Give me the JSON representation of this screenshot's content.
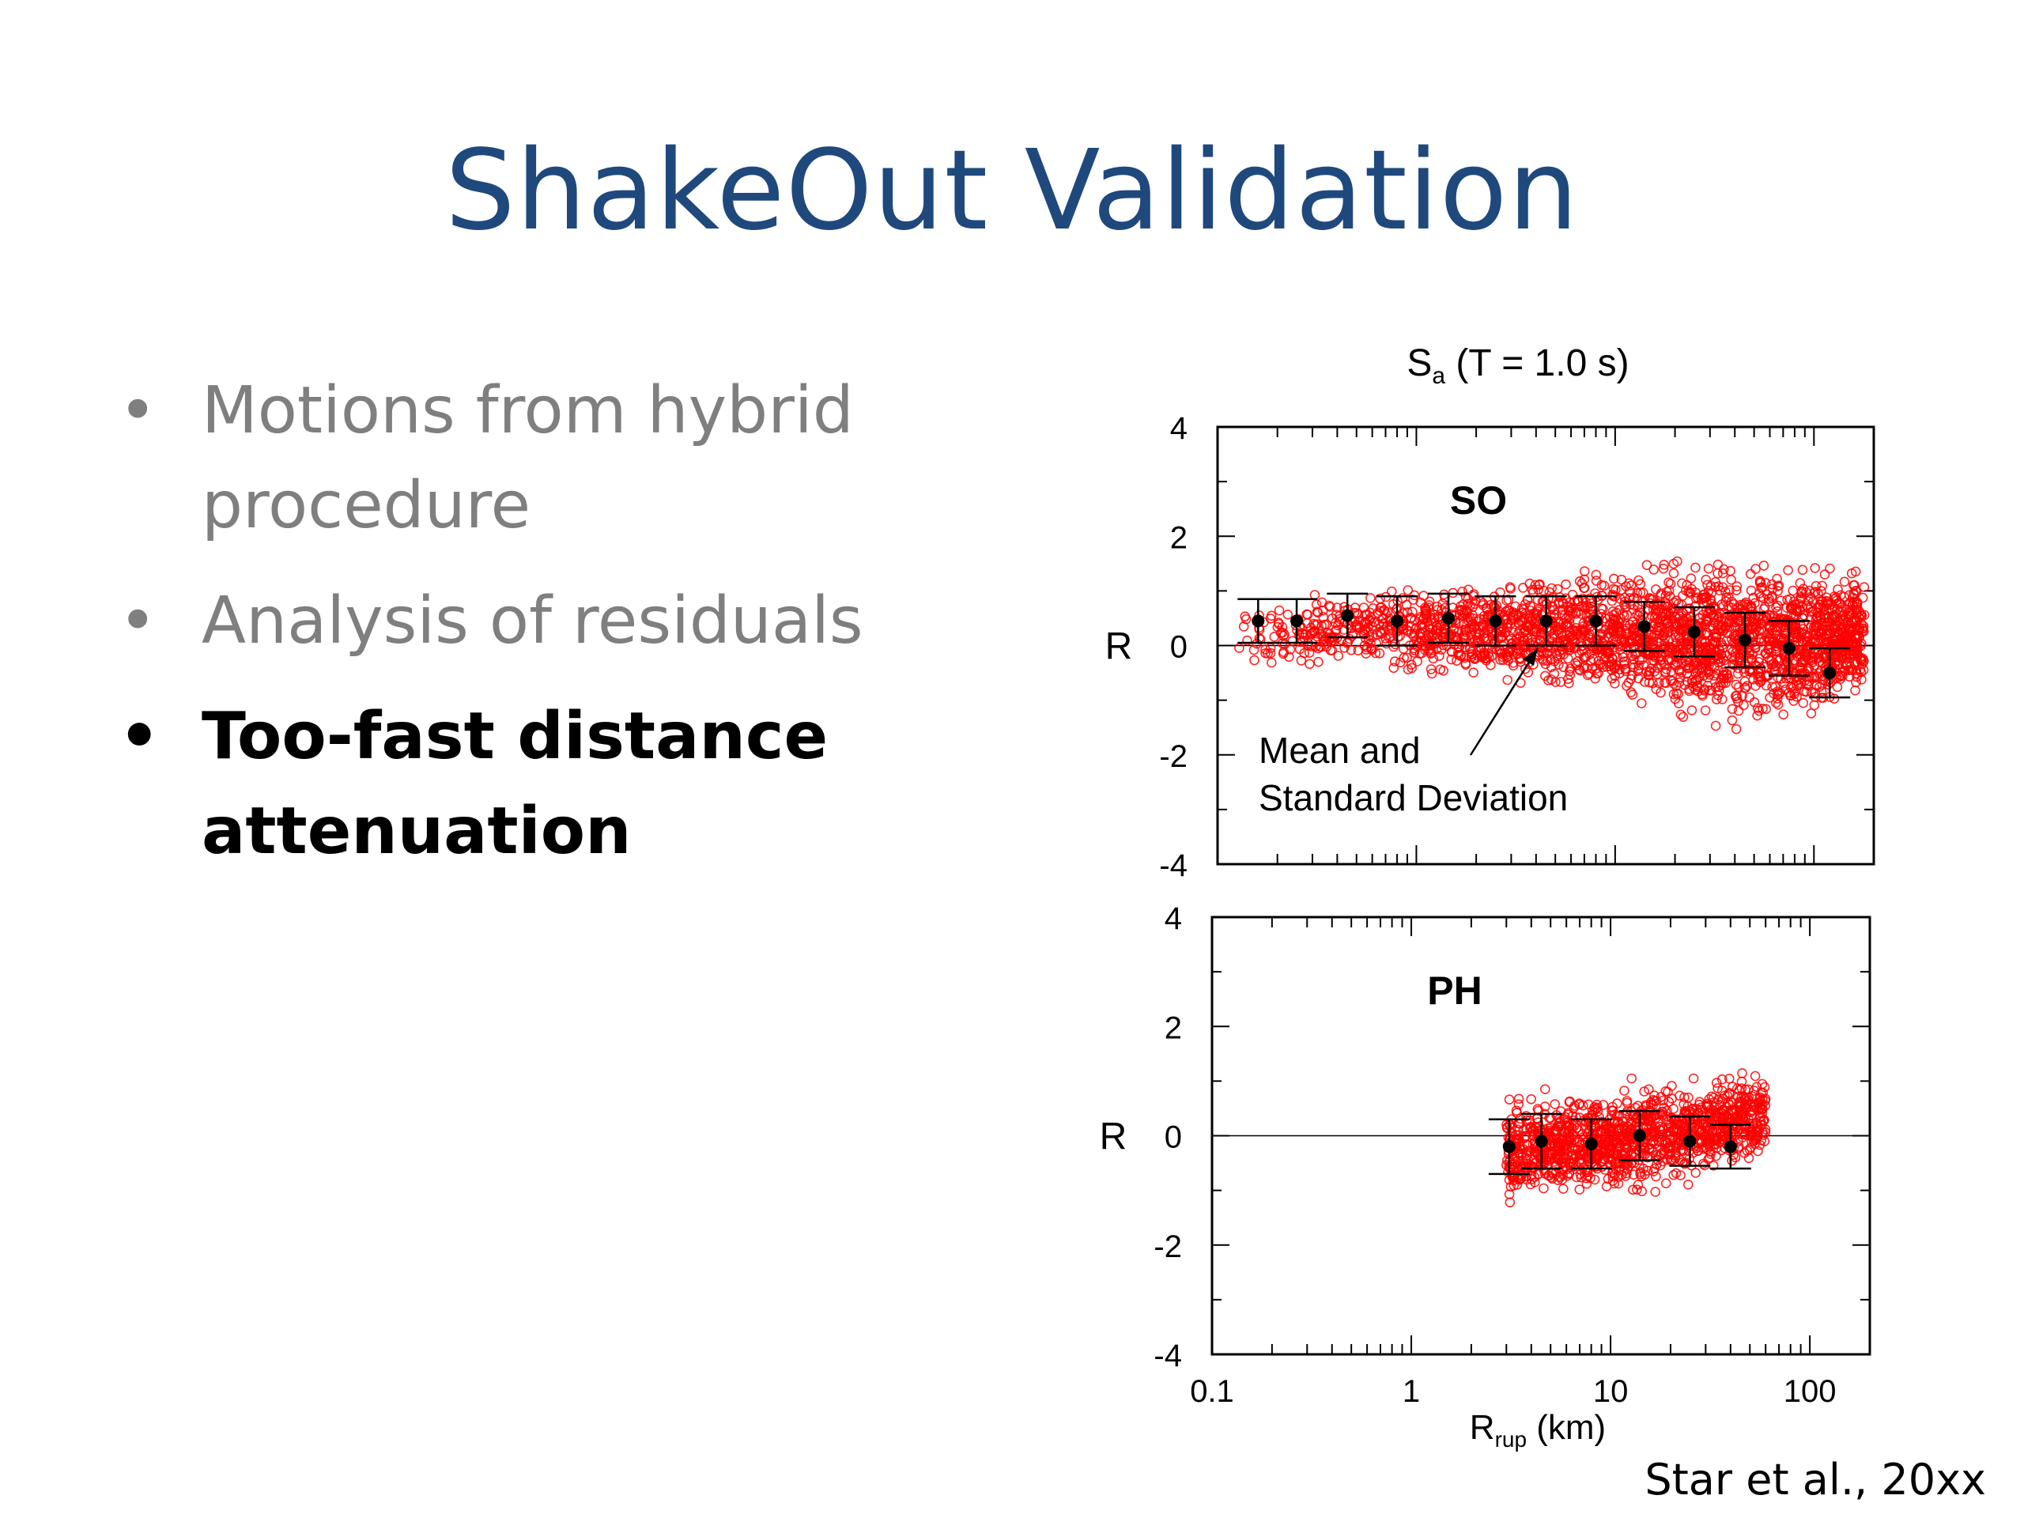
{
  "slide": {
    "title": "ShakeOut Validation",
    "citation": "Star et al., 20xx"
  },
  "bullets": [
    {
      "text": "Motions from hybrid procedure",
      "bold": false
    },
    {
      "text": "Analysis of residuals",
      "bold": false
    },
    {
      "text": "Too-fast distance attenuation",
      "bold": true
    }
  ],
  "colors": {
    "title": "#1f497d",
    "bullet_gray": "#7f7f7f",
    "residual_red": "#ff0000",
    "mean_marker": "#000000"
  },
  "chart_data": {
    "type": "scatter",
    "title_main": "S",
    "title_sub": "a",
    "title_rest": " (T = 1.0 s)",
    "xlabel_main": "R",
    "xlabel_sub": "rup",
    "xlabel_rest": " (km)",
    "ylabel": "R",
    "x_scale": "log",
    "xlim": [
      0.1,
      200
    ],
    "ylim": [
      -4,
      4
    ],
    "x_ticks": [
      0.1,
      1,
      10,
      100
    ],
    "x_tick_labels": [
      "0.1",
      "1",
      "10",
      "100"
    ],
    "y_ticks": [
      4,
      2,
      0,
      -2,
      -4
    ],
    "y_tick_labels": [
      "4",
      "2",
      "0",
      "-2",
      "-4"
    ],
    "annotation": [
      "Mean and",
      "Standard Deviation"
    ],
    "panels": [
      {
        "label": "SO",
        "scatter_envelope": {
          "x_range": [
            0.12,
            180
          ],
          "upper": [
            0.9,
            1.2,
            1.3,
            1.6,
            1.9,
            1.6
          ],
          "lower": [
            -0.6,
            -0.6,
            -0.8,
            -1.2,
            -1.8,
            -1.2
          ]
        },
        "mean_std": [
          {
            "x": 0.16,
            "mean": 0.45,
            "std": 0.4
          },
          {
            "x": 0.25,
            "mean": 0.45,
            "std": 0.4
          },
          {
            "x": 0.45,
            "mean": 0.55,
            "std": 0.4
          },
          {
            "x": 0.8,
            "mean": 0.45,
            "std": 0.45
          },
          {
            "x": 1.45,
            "mean": 0.5,
            "std": 0.45
          },
          {
            "x": 2.5,
            "mean": 0.45,
            "std": 0.45
          },
          {
            "x": 4.5,
            "mean": 0.45,
            "std": 0.45
          },
          {
            "x": 8,
            "mean": 0.45,
            "std": 0.45
          },
          {
            "x": 14,
            "mean": 0.35,
            "std": 0.45
          },
          {
            "x": 25,
            "mean": 0.25,
            "std": 0.45
          },
          {
            "x": 45,
            "mean": 0.1,
            "std": 0.5
          },
          {
            "x": 75,
            "mean": -0.05,
            "std": 0.5
          },
          {
            "x": 120,
            "mean": -0.5,
            "std": 0.45
          }
        ]
      },
      {
        "label": "PH",
        "scatter_envelope": {
          "x_range": [
            3,
            60
          ],
          "upper": [
            0.8,
            1.1,
            1.3
          ],
          "lower": [
            -1.4,
            -1.2,
            -0.6
          ]
        },
        "mean_std": [
          {
            "x": 3.1,
            "mean": -0.2,
            "std": 0.5
          },
          {
            "x": 4.5,
            "mean": -0.1,
            "std": 0.5
          },
          {
            "x": 8,
            "mean": -0.15,
            "std": 0.45
          },
          {
            "x": 14,
            "mean": 0.0,
            "std": 0.45
          },
          {
            "x": 25,
            "mean": -0.1,
            "std": 0.45
          },
          {
            "x": 40,
            "mean": -0.2,
            "std": 0.4
          }
        ]
      }
    ]
  }
}
